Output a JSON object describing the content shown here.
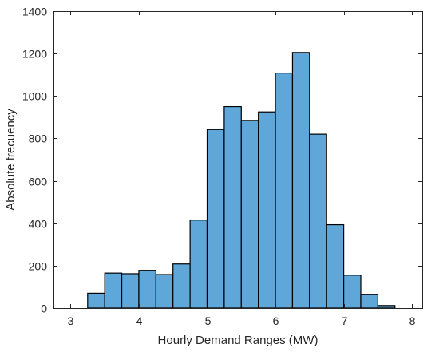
{
  "chart_data": {
    "type": "bar",
    "title": "",
    "xlabel": "Hourly Demand Ranges (MW)",
    "ylabel": "Absolute frecuency",
    "xlim": [
      2.75,
      8.15
    ],
    "ylim": [
      0,
      1400
    ],
    "xticks": [
      3,
      4,
      5,
      6,
      7,
      8
    ],
    "yticks": [
      0,
      200,
      400,
      600,
      800,
      1000,
      1200,
      1400
    ],
    "bin_width": 0.25,
    "bins": [
      {
        "start": 3.25,
        "value": 70
      },
      {
        "start": 3.5,
        "value": 165
      },
      {
        "start": 3.75,
        "value": 162
      },
      {
        "start": 4.0,
        "value": 178
      },
      {
        "start": 4.25,
        "value": 158
      },
      {
        "start": 4.5,
        "value": 208
      },
      {
        "start": 4.75,
        "value": 415
      },
      {
        "start": 5.0,
        "value": 842
      },
      {
        "start": 5.25,
        "value": 950
      },
      {
        "start": 5.5,
        "value": 885
      },
      {
        "start": 5.75,
        "value": 925
      },
      {
        "start": 6.0,
        "value": 1108
      },
      {
        "start": 6.25,
        "value": 1205
      },
      {
        "start": 6.5,
        "value": 820
      },
      {
        "start": 6.75,
        "value": 393
      },
      {
        "start": 7.0,
        "value": 155
      },
      {
        "start": 7.25,
        "value": 65
      },
      {
        "start": 7.5,
        "value": 12
      }
    ],
    "bar_color": "#5fa6d9",
    "edge_color": "#000000",
    "grid": false
  }
}
